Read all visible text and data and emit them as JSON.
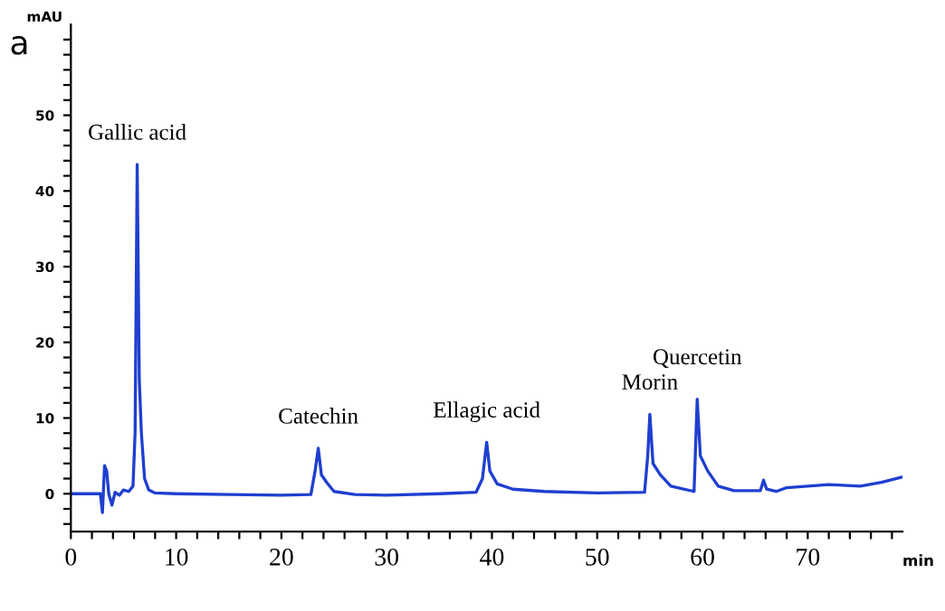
{
  "chart_data": {
    "type": "line",
    "xlabel": "min",
    "ylabel": "mAU",
    "annotations": [
      "a",
      {
        "text": "Gallic acid",
        "x": 6.3,
        "y": 43.5
      },
      {
        "text": "Catechin",
        "x": 23.5,
        "y": 6
      },
      {
        "text": "Ellagic acid",
        "x": 39.5,
        "y": 6.8
      },
      {
        "text": "Morin",
        "x": 55.0,
        "y": 10.5
      },
      {
        "text": "Quercetin",
        "x": 59.5,
        "y": 12.5
      }
    ],
    "x": [
      0,
      1,
      2,
      2.8,
      3.0,
      3.2,
      3.4,
      3.6,
      3.9,
      4.2,
      4.6,
      5.0,
      5.5,
      5.9,
      6.1,
      6.3,
      6.5,
      6.7,
      7.0,
      7.4,
      8.0,
      10,
      15,
      20,
      22.8,
      23.2,
      23.5,
      23.8,
      24.3,
      25,
      27,
      30,
      35,
      38.5,
      39.1,
      39.5,
      39.8,
      40.5,
      42,
      45,
      50,
      54.5,
      54.8,
      55.0,
      55.3,
      56,
      57,
      59.2,
      59.5,
      59.8,
      60.5,
      61.5,
      63,
      65.5,
      65.8,
      66.1,
      67,
      68,
      70,
      72,
      75,
      77,
      79
    ],
    "series": [
      {
        "color": "#1f3fd0",
        "values": [
          0,
          0,
          0,
          0,
          -2.5,
          3.7,
          3.0,
          0,
          -1.5,
          0.2,
          -0.2,
          0.5,
          0.3,
          1,
          8,
          43.5,
          15,
          8,
          2,
          0.5,
          0.1,
          0,
          -0.1,
          -0.2,
          -0.1,
          3,
          6,
          2.5,
          1.5,
          0.3,
          -0.1,
          -0.2,
          0,
          0.2,
          2,
          6.8,
          3,
          1.3,
          0.6,
          0.3,
          0.1,
          0.2,
          5,
          10.5,
          4,
          2.5,
          1,
          0.3,
          12.5,
          5,
          3,
          1,
          0.4,
          0.4,
          1.8,
          0.6,
          0.3,
          0.8,
          1,
          1.2,
          1.0,
          1.5,
          2.2
        ]
      }
    ],
    "xlim": [
      0,
      79
    ],
    "ylim": [
      -5,
      62
    ],
    "xticks": [
      0,
      {
        "value": 2,
        "label": null
      },
      {
        "value": 4,
        "label": null
      },
      {
        "value": 6,
        "label": null
      },
      {
        "value": 8,
        "label": null
      },
      10,
      {
        "value": 12,
        "label": null
      },
      {
        "value": 14,
        "label": null
      },
      {
        "value": 16,
        "label": null
      },
      {
        "value": 18,
        "label": null
      },
      20,
      {
        "value": 22,
        "label": null
      },
      {
        "value": 24,
        "label": null
      },
      {
        "value": 26,
        "label": null
      },
      {
        "value": 28,
        "label": null
      },
      30,
      {
        "value": 32,
        "label": null
      },
      {
        "value": 34,
        "label": null
      },
      {
        "value": 36,
        "label": null
      },
      {
        "value": 38,
        "label": null
      },
      40,
      {
        "value": 42,
        "label": null
      },
      {
        "value": 44,
        "label": null
      },
      {
        "value": 46,
        "label": null
      },
      {
        "value": 48,
        "label": null
      },
      50,
      {
        "value": 52,
        "label": null
      },
      {
        "value": 54,
        "label": null
      },
      {
        "value": 56,
        "label": null
      },
      {
        "value": 58,
        "label": null
      },
      60,
      {
        "value": 62,
        "label": null
      },
      {
        "value": 64,
        "label": null
      },
      {
        "value": 66,
        "label": null
      },
      {
        "value": 68,
        "label": null
      },
      70,
      {
        "value": 72,
        "label": null
      },
      {
        "value": 74,
        "label": null
      },
      {
        "value": 76,
        "label": null
      },
      {
        "value": 78,
        "label": null
      }
    ],
    "yticks": [
      {
        "value": -4,
        "label": null
      },
      {
        "value": -2,
        "label": null
      },
      0,
      {
        "value": 2,
        "label": null
      },
      {
        "value": 4,
        "label": null
      },
      {
        "value": 6,
        "label": null
      },
      {
        "value": 8,
        "label": null
      },
      10,
      {
        "value": 12,
        "label": null
      },
      {
        "value": 14,
        "label": null
      },
      {
        "value": 16,
        "label": null
      },
      {
        "value": 18,
        "label": null
      },
      20,
      {
        "value": 22,
        "label": null
      },
      {
        "value": 24,
        "label": null
      },
      {
        "value": 26,
        "label": null
      },
      {
        "value": 28,
        "label": null
      },
      30,
      {
        "value": 32,
        "label": null
      },
      {
        "value": 34,
        "label": null
      },
      {
        "value": 36,
        "label": null
      },
      {
        "value": 38,
        "label": null
      },
      40,
      {
        "value": 42,
        "label": null
      },
      {
        "value": 44,
        "label": null
      },
      {
        "value": 46,
        "label": null
      },
      {
        "value": 48,
        "label": null
      },
      50,
      {
        "value": 52,
        "label": null
      },
      {
        "value": 54,
        "label": null
      },
      {
        "value": 56,
        "label": null
      },
      {
        "value": 58,
        "label": null
      },
      {
        "value": 60,
        "label": null
      }
    ],
    "grid": false
  }
}
